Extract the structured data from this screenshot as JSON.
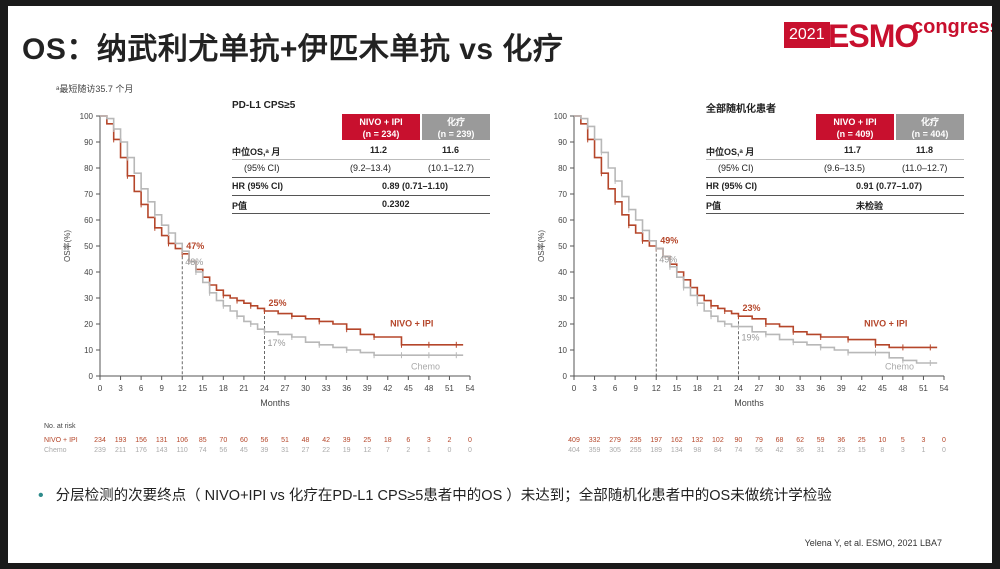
{
  "title": "OS：纳武利尤单抗+伊匹木单抗 vs 化疗",
  "logo": {
    "year": "2021",
    "name": "ESMO",
    "suffix": "congress"
  },
  "footnote": "ᵃ最短随访35.7 个月",
  "bullet": "分层检测的次要终点（ NIVO+IPI vs 化疗在PD-L1 CPS≥5患者中的OS ）未达到；全部随机化患者中的OS未做统计学检验",
  "citation": "Yelena Y, et al. ESMO, 2021 LBA7",
  "colors": {
    "nivo": "#c8102e",
    "chemo": "#a0a0a0",
    "nivo_line": "#b5462a",
    "chemo_line": "#b8b8b8"
  },
  "chart_data": [
    {
      "type": "line",
      "panel": "left",
      "table_title": "PD-L1 CPS≥5",
      "header": {
        "nivo": "NIVO + IPI",
        "nivo_n": "(n = 234)",
        "chemo": "化疗",
        "chemo_n": "(n = 239)"
      },
      "rows": [
        {
          "label": "中位OS,ᵃ 月",
          "nivo": "11.2",
          "chemo": "11.6"
        },
        {
          "label": "(95% CI)",
          "nivo": "(9.2–13.4)",
          "chemo": "(10.1–12.7)"
        },
        {
          "label": "HR (95% CI)",
          "merged": "0.89 (0.71–1.10)"
        },
        {
          "label": "P值",
          "merged": "0.2302"
        }
      ],
      "ylabel": "OS率(%)",
      "xlabel": "Months",
      "ylim": [
        0,
        100
      ],
      "xlim": [
        0,
        54
      ],
      "x_ticks": [
        "0",
        "3",
        "6",
        "9",
        "12",
        "15",
        "18",
        "21",
        "24",
        "27",
        "30",
        "33",
        "36",
        "39",
        "42",
        "45",
        "48",
        "51",
        "54"
      ],
      "y_ticks": [
        "0",
        "10",
        "20",
        "30",
        "40",
        "50",
        "60",
        "70",
        "80",
        "90",
        "100"
      ],
      "annotations": [
        {
          "x": 12,
          "y": 47,
          "text": "47%",
          "series": "nivo"
        },
        {
          "x": 12,
          "y": 48,
          "text": "48%",
          "series": "chemo"
        },
        {
          "x": 24,
          "y": 25,
          "text": "25%",
          "series": "nivo"
        },
        {
          "x": 24,
          "y": 17,
          "text": "17%",
          "series": "chemo"
        }
      ],
      "series": [
        {
          "name": "NIVO + IPI",
          "key": "nivo",
          "x": [
            0,
            1,
            2,
            3,
            4,
            5,
            6,
            7,
            8,
            9,
            10,
            11,
            12,
            13,
            14,
            15,
            16,
            17,
            18,
            19,
            20,
            21,
            22,
            23,
            24,
            26,
            28,
            30,
            32,
            34,
            36,
            38,
            40,
            42,
            44,
            46,
            48,
            50,
            52
          ],
          "y": [
            100,
            97,
            91,
            84,
            77,
            71,
            66,
            61,
            57,
            54,
            51,
            49,
            47,
            44,
            41,
            38,
            35,
            33,
            31,
            30,
            29,
            28,
            27,
            26,
            25,
            24,
            23,
            22,
            21,
            20,
            18,
            16,
            15,
            15,
            12,
            12,
            12,
            12,
            12
          ]
        },
        {
          "name": "Chemo",
          "key": "chemo",
          "x": [
            0,
            1,
            2,
            3,
            4,
            5,
            6,
            7,
            8,
            9,
            10,
            11,
            12,
            13,
            14,
            15,
            16,
            17,
            18,
            19,
            20,
            21,
            22,
            23,
            24,
            26,
            28,
            30,
            32,
            34,
            36,
            38,
            40,
            42,
            44,
            46,
            48,
            50,
            52
          ],
          "y": [
            100,
            99,
            95,
            90,
            84,
            78,
            72,
            67,
            62,
            58,
            55,
            51,
            48,
            44,
            40,
            36,
            32,
            29,
            27,
            25,
            23,
            21,
            20,
            18,
            17,
            16,
            15,
            13,
            12,
            11,
            10,
            9,
            8,
            8,
            8,
            8,
            8,
            8,
            8
          ]
        }
      ],
      "risk": {
        "title": "No. at risk",
        "nivo_label": "NIVO + IPI",
        "chemo_label": "Chemo",
        "nivo": [
          "234",
          "193",
          "156",
          "131",
          "106",
          "85",
          "70",
          "60",
          "56",
          "51",
          "48",
          "42",
          "39",
          "25",
          "18",
          "6",
          "3",
          "2",
          "0"
        ],
        "chemo": [
          "239",
          "211",
          "176",
          "143",
          "110",
          "74",
          "56",
          "45",
          "39",
          "31",
          "27",
          "22",
          "19",
          "12",
          "7",
          "2",
          "1",
          "0",
          "0"
        ]
      },
      "legend": {
        "nivo": "NIVO + IPI",
        "chemo": "Chemo"
      }
    },
    {
      "type": "line",
      "panel": "right",
      "table_title": "全部随机化患者",
      "header": {
        "nivo": "NIVO + IPI",
        "nivo_n": "(n = 409)",
        "chemo": "化疗",
        "chemo_n": "(n = 404)"
      },
      "rows": [
        {
          "label": "中位OS,ᵃ 月",
          "nivo": "11.7",
          "chemo": "11.8"
        },
        {
          "label": "(95% CI)",
          "nivo": "(9.6–13.5)",
          "chemo": "(11.0–12.7)"
        },
        {
          "label": "HR (95% CI)",
          "merged": "0.91 (0.77–1.07)"
        },
        {
          "label": "P值",
          "merged": "未检验"
        }
      ],
      "ylabel": "OS率(%)",
      "xlabel": "Months",
      "ylim": [
        0,
        100
      ],
      "xlim": [
        0,
        54
      ],
      "x_ticks": [
        "0",
        "3",
        "6",
        "9",
        "12",
        "15",
        "18",
        "21",
        "24",
        "27",
        "30",
        "33",
        "36",
        "39",
        "42",
        "45",
        "48",
        "51",
        "54"
      ],
      "y_ticks": [
        "0",
        "10",
        "20",
        "30",
        "40",
        "50",
        "60",
        "70",
        "80",
        "90",
        "100"
      ],
      "annotations": [
        {
          "x": 12,
          "y": 49,
          "text": "49%",
          "series": "nivo"
        },
        {
          "x": 12,
          "y": 49,
          "text": "49%",
          "series": "chemo"
        },
        {
          "x": 24,
          "y": 23,
          "text": "23%",
          "series": "nivo"
        },
        {
          "x": 24,
          "y": 19,
          "text": "19%",
          "series": "chemo"
        }
      ],
      "series": [
        {
          "name": "NIVO + IPI",
          "key": "nivo",
          "x": [
            0,
            1,
            2,
            3,
            4,
            5,
            6,
            7,
            8,
            9,
            10,
            11,
            12,
            13,
            14,
            15,
            16,
            17,
            18,
            19,
            20,
            21,
            22,
            23,
            24,
            26,
            28,
            30,
            32,
            34,
            36,
            38,
            40,
            42,
            44,
            46,
            48,
            50,
            52
          ],
          "y": [
            100,
            97,
            91,
            84,
            78,
            72,
            67,
            62,
            58,
            55,
            52,
            50,
            49,
            46,
            43,
            40,
            37,
            34,
            31,
            29,
            27,
            26,
            25,
            24,
            23,
            22,
            20,
            19,
            17,
            16,
            15,
            15,
            14,
            14,
            12,
            11,
            11,
            11,
            11
          ]
        },
        {
          "name": "Chemo",
          "key": "chemo",
          "x": [
            0,
            1,
            2,
            3,
            4,
            5,
            6,
            7,
            8,
            9,
            10,
            11,
            12,
            13,
            14,
            15,
            16,
            17,
            18,
            19,
            20,
            21,
            22,
            23,
            24,
            26,
            28,
            30,
            32,
            34,
            36,
            38,
            40,
            42,
            44,
            46,
            48,
            50,
            52
          ],
          "y": [
            100,
            99,
            96,
            91,
            86,
            80,
            75,
            69,
            64,
            60,
            56,
            52,
            49,
            46,
            42,
            38,
            34,
            31,
            28,
            25,
            23,
            21,
            20,
            19,
            19,
            17,
            16,
            14,
            13,
            12,
            11,
            10,
            9,
            9,
            9,
            7,
            6,
            5,
            5
          ]
        }
      ],
      "risk": {
        "title": "",
        "nivo_label": "",
        "chemo_label": "",
        "nivo": [
          "409",
          "332",
          "279",
          "235",
          "197",
          "162",
          "132",
          "102",
          "90",
          "79",
          "68",
          "62",
          "59",
          "36",
          "25",
          "10",
          "5",
          "3",
          "0"
        ],
        "chemo": [
          "404",
          "359",
          "305",
          "255",
          "189",
          "134",
          "98",
          "84",
          "74",
          "56",
          "42",
          "36",
          "31",
          "23",
          "15",
          "8",
          "3",
          "1",
          "0"
        ]
      },
      "legend": {
        "nivo": "NIVO + IPI",
        "chemo": "Chemo"
      }
    }
  ]
}
